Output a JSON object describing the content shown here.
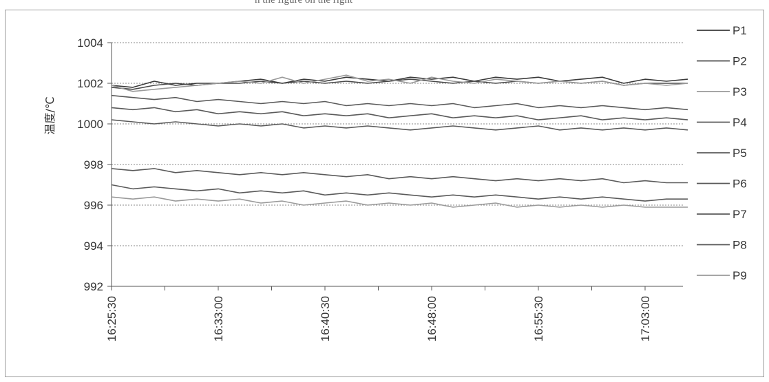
{
  "caption": "n the figure on the right",
  "chart_data": {
    "type": "line",
    "title": "",
    "xlabel": "",
    "ylabel": "温度/℃",
    "ylim": [
      992,
      1004
    ],
    "yticks": [
      992,
      994,
      996,
      998,
      1000,
      1002,
      1004
    ],
    "grid": true,
    "legend_position": "right",
    "x_tick_labels": [
      "16:25:30",
      "16:33:00",
      "16:40:30",
      "16:48:00",
      "16:55:30",
      "17:03:00"
    ],
    "x": [
      "16:25:30",
      "16:27:00",
      "16:28:30",
      "16:30:00",
      "16:31:30",
      "16:33:00",
      "16:34:30",
      "16:36:00",
      "16:37:30",
      "16:39:00",
      "16:40:30",
      "16:42:00",
      "16:43:30",
      "16:45:00",
      "16:46:30",
      "16:48:00",
      "16:49:30",
      "16:51:00",
      "16:52:30",
      "16:54:00",
      "16:55:30",
      "16:57:00",
      "16:58:30",
      "17:00:00",
      "17:01:30",
      "17:03:00",
      "17:04:30",
      "17:06:00"
    ],
    "series": [
      {
        "name": "P1",
        "color": "#3a3a3a",
        "values": [
          1001.9,
          1001.8,
          1002.1,
          1001.9,
          1002.0,
          1002.0,
          1002.1,
          1002.2,
          1002.0,
          1002.2,
          1002.1,
          1002.3,
          1002.2,
          1002.1,
          1002.3,
          1002.2,
          1002.3,
          1002.1,
          1002.3,
          1002.2,
          1002.3,
          1002.1,
          1002.2,
          1002.3,
          1002.0,
          1002.2,
          1002.1,
          1002.2
        ]
      },
      {
        "name": "P2",
        "color": "#4a4a4a",
        "values": [
          1001.8,
          1001.7,
          1001.9,
          1002.0,
          1001.9,
          1002.0,
          1002.0,
          1002.1,
          1002.0,
          1002.1,
          1002.0,
          1002.1,
          1002.0,
          1002.1,
          1002.2,
          1002.1,
          1002.0,
          1002.1,
          1002.0,
          1002.1,
          1002.0,
          1002.1,
          1002.0,
          1002.1,
          1001.9,
          1002.0,
          1002.0,
          1002.0
        ]
      },
      {
        "name": "P3",
        "color": "#9a9a9a",
        "values": [
          1001.9,
          1001.6,
          1001.7,
          1001.8,
          1001.9,
          1002.0,
          1002.1,
          1002.0,
          1002.3,
          1002.0,
          1002.2,
          1002.4,
          1002.1,
          1002.2,
          1002.0,
          1002.3,
          1002.1,
          1002.0,
          1002.2,
          1002.1,
          1002.0,
          1002.1,
          1002.0,
          1002.1,
          1001.9,
          1002.0,
          1001.9,
          1002.0
        ]
      },
      {
        "name": "P4",
        "color": "#5a5a5a",
        "values": [
          1001.4,
          1001.3,
          1001.2,
          1001.3,
          1001.1,
          1001.2,
          1001.1,
          1001.0,
          1001.1,
          1001.0,
          1001.1,
          1000.9,
          1001.0,
          1000.9,
          1001.0,
          1000.9,
          1001.0,
          1000.8,
          1000.9,
          1001.0,
          1000.8,
          1000.9,
          1000.8,
          1000.9,
          1000.8,
          1000.7,
          1000.8,
          1000.7
        ]
      },
      {
        "name": "P5",
        "color": "#5a5a5a",
        "values": [
          1000.8,
          1000.7,
          1000.8,
          1000.6,
          1000.7,
          1000.5,
          1000.6,
          1000.5,
          1000.6,
          1000.4,
          1000.5,
          1000.4,
          1000.5,
          1000.3,
          1000.4,
          1000.5,
          1000.3,
          1000.4,
          1000.3,
          1000.4,
          1000.2,
          1000.3,
          1000.4,
          1000.2,
          1000.3,
          1000.2,
          1000.3,
          1000.2
        ]
      },
      {
        "name": "P6",
        "color": "#5a5a5a",
        "values": [
          1000.2,
          1000.1,
          1000.0,
          1000.1,
          1000.0,
          999.9,
          1000.0,
          999.9,
          1000.0,
          999.8,
          999.9,
          999.8,
          999.9,
          999.8,
          999.7,
          999.8,
          999.9,
          999.8,
          999.7,
          999.8,
          999.9,
          999.7,
          999.8,
          999.7,
          999.8,
          999.7,
          999.8,
          999.7
        ]
      },
      {
        "name": "P7",
        "color": "#5a5a5a",
        "values": [
          997.8,
          997.7,
          997.8,
          997.6,
          997.7,
          997.6,
          997.5,
          997.6,
          997.5,
          997.6,
          997.5,
          997.4,
          997.5,
          997.3,
          997.4,
          997.3,
          997.4,
          997.3,
          997.2,
          997.3,
          997.2,
          997.3,
          997.2,
          997.3,
          997.1,
          997.2,
          997.1,
          997.1
        ]
      },
      {
        "name": "P8",
        "color": "#5a5a5a",
        "values": [
          997.0,
          996.8,
          996.9,
          996.8,
          996.7,
          996.8,
          996.6,
          996.7,
          996.6,
          996.7,
          996.5,
          996.6,
          996.5,
          996.6,
          996.5,
          996.4,
          996.5,
          996.4,
          996.5,
          996.4,
          996.3,
          996.4,
          996.3,
          996.4,
          996.3,
          996.2,
          996.3,
          996.3
        ]
      },
      {
        "name": "P9",
        "color": "#9a9a9a",
        "values": [
          996.4,
          996.3,
          996.4,
          996.2,
          996.3,
          996.2,
          996.3,
          996.1,
          996.2,
          996.0,
          996.1,
          996.2,
          996.0,
          996.1,
          996.0,
          996.1,
          995.9,
          996.0,
          996.1,
          995.9,
          996.0,
          995.9,
          996.0,
          995.9,
          996.0,
          995.9,
          995.9,
          995.9
        ]
      }
    ]
  }
}
